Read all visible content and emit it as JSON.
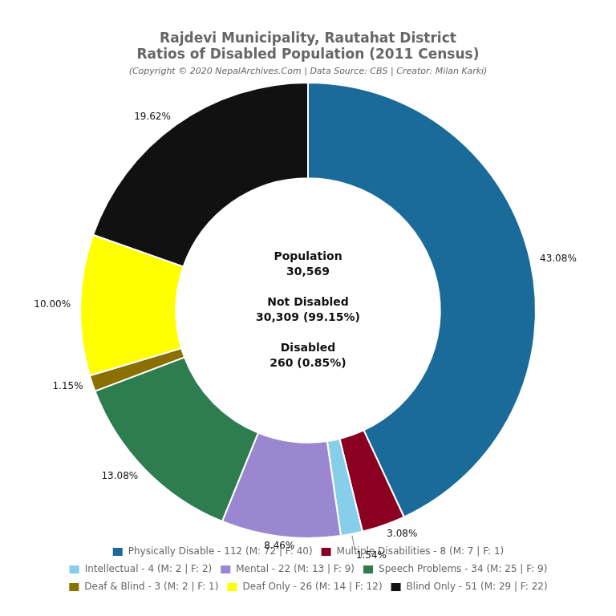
{
  "chart_data": {
    "type": "doughnut",
    "title": [
      "Rajdevi Municipality, Rautahat District",
      "Ratios of Disabled Population (2011 Census)"
    ],
    "subtitle": "(Copyright © 2020 NepalArchives.Com | Data Source: CBS | Creator: Milan Karki)",
    "categories": [
      "Physically Disable - 112 (M: 72 | F: 40)",
      "Multiple Disabilities - 8 (M: 7 | F: 1)",
      "Intellectual - 4 (M: 2 | F: 2)",
      "Mental - 22 (M: 13 | F: 9)",
      "Speech Problems - 34 (M: 25 | F: 9)",
      "Deaf & Blind - 3 (M: 2 | F: 1)",
      "Deaf Only - 26 (M: 14 | F: 12)",
      "Blind Only - 51 (M: 29 | F: 22)"
    ],
    "values": [
      43.08,
      3.08,
      1.54,
      8.46,
      13.08,
      1.15,
      10.0,
      19.62
    ],
    "value_labels": [
      "43.08%",
      "3.08%",
      "1.54%",
      "8.46%",
      "13.08%",
      "1.15%",
      "10.00%",
      "19.62%"
    ],
    "colors": [
      "#1a6b9a",
      "#8b0020",
      "#87ceeb",
      "#9b87d0",
      "#2e7d4f",
      "#8b7000",
      "#ffff00",
      "#111111"
    ],
    "data_labels": true,
    "legend": "bottom",
    "annotations": [
      "Population\n30,569\n\nNot Disabled\n30,309 (99.15%)\n\nDisabled\n260 (0.85%)"
    ]
  }
}
